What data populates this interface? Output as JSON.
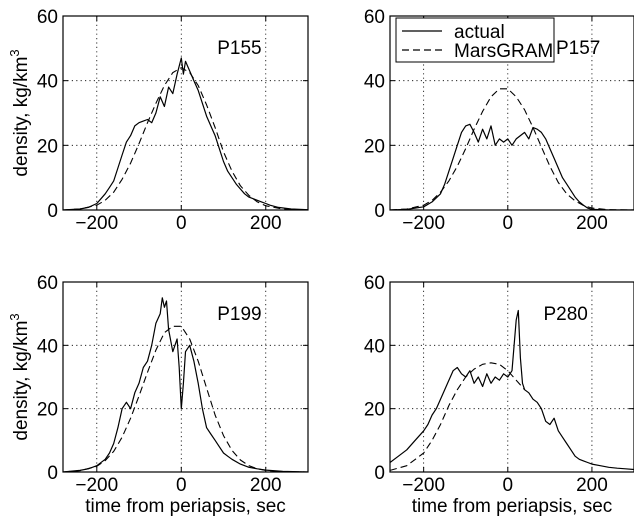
{
  "figure": {
    "ylabel": "density, kg/km",
    "ylabel_sup": "3",
    "xlabel": "time from periapsis, sec"
  },
  "chart_data": [
    {
      "type": "line",
      "panel": "top-left",
      "annotation": "P155",
      "ylabel": "density, kg/km3",
      "xlabel": "",
      "xlim": [
        -280,
        300
      ],
      "ylim": [
        0,
        60
      ],
      "xticks": [
        -200,
        0,
        200
      ],
      "yticks": [
        0,
        20,
        40,
        60
      ],
      "grid": true,
      "legend": null,
      "series": [
        {
          "role": "actual",
          "style": "solid",
          "x": [
            -280,
            -240,
            -220,
            -200,
            -190,
            -180,
            -170,
            -160,
            -150,
            -140,
            -130,
            -120,
            -110,
            -100,
            -90,
            -80,
            -70,
            -60,
            -50,
            -40,
            -30,
            -20,
            -10,
            0,
            5,
            10,
            20,
            30,
            40,
            50,
            60,
            70,
            80,
            90,
            100,
            110,
            120,
            130,
            140,
            150,
            160,
            170,
            180,
            190,
            200,
            210,
            230,
            260,
            300
          ],
          "y": [
            0,
            0.3,
            0.8,
            2,
            3.5,
            5,
            7,
            9,
            13,
            17,
            21,
            23,
            26,
            27,
            27.5,
            28,
            27,
            30,
            35,
            32,
            38,
            36,
            42,
            47,
            42,
            46,
            43,
            40,
            37,
            33,
            29,
            26,
            23,
            19,
            15,
            12,
            10,
            8,
            6.5,
            5,
            4,
            3.5,
            3,
            2.5,
            2,
            1.5,
            0.8,
            0.3,
            0.1
          ]
        },
        {
          "role": "MarsGRAM",
          "style": "dashed",
          "x": [
            -280,
            -240,
            -200,
            -180,
            -160,
            -140,
            -120,
            -100,
            -80,
            -60,
            -40,
            -20,
            0,
            20,
            40,
            60,
            80,
            100,
            120,
            140,
            160,
            180,
            200,
            240,
            300
          ],
          "y": [
            0,
            0.3,
            1.5,
            3,
            5.5,
            9.5,
            14.5,
            20.5,
            27,
            33,
            38.5,
            42.5,
            44,
            42.5,
            38.5,
            32.5,
            25.5,
            18,
            12,
            7.5,
            4.5,
            2.5,
            1.3,
            0.3,
            0
          ]
        }
      ]
    },
    {
      "type": "line",
      "panel": "top-right",
      "annotation": "P157",
      "ylabel": "",
      "xlabel": "",
      "xlim": [
        -280,
        300
      ],
      "ylim": [
        0,
        60
      ],
      "xticks": [
        -200,
        0,
        200
      ],
      "yticks": [
        0,
        20,
        40,
        60
      ],
      "grid": true,
      "legend": {
        "placement": "top-right",
        "entries": [
          {
            "label": "actual",
            "style": "solid"
          },
          {
            "label": "MarsGRAM",
            "style": "dashed"
          }
        ]
      },
      "series": [
        {
          "role": "actual",
          "style": "solid",
          "x": [
            -280,
            -240,
            -200,
            -180,
            -160,
            -150,
            -140,
            -130,
            -120,
            -110,
            -100,
            -90,
            -80,
            -70,
            -60,
            -50,
            -40,
            -30,
            -20,
            -10,
            0,
            10,
            20,
            30,
            40,
            50,
            60,
            70,
            80,
            90,
            100,
            110,
            120,
            130,
            140,
            150,
            160,
            170,
            180,
            190,
            200,
            240,
            300
          ],
          "y": [
            0,
            0.2,
            1,
            2.5,
            5,
            8,
            12,
            16,
            20,
            24,
            26,
            26.5,
            24,
            21,
            25,
            22,
            26,
            20,
            22,
            21,
            22,
            20,
            22,
            23,
            24,
            22,
            25.5,
            25,
            24,
            22,
            19,
            16,
            13,
            10,
            8,
            6,
            4,
            2.5,
            1.5,
            0.6,
            0.2,
            0,
            0
          ]
        },
        {
          "role": "MarsGRAM",
          "style": "dashed",
          "x": [
            -280,
            -240,
            -200,
            -180,
            -160,
            -140,
            -120,
            -100,
            -80,
            -60,
            -40,
            -20,
            0,
            20,
            40,
            60,
            80,
            100,
            120,
            140,
            160,
            180,
            200,
            240,
            300
          ],
          "y": [
            0,
            0.3,
            1.5,
            3,
            5.5,
            9,
            13.5,
            19,
            25,
            30.5,
            35,
            37.5,
            37.5,
            35,
            31,
            25.5,
            19.5,
            13.5,
            8.5,
            5,
            2.8,
            1.4,
            0.6,
            0.1,
            0
          ]
        }
      ]
    },
    {
      "type": "line",
      "panel": "bottom-left",
      "annotation": "P199",
      "ylabel": "density, kg/km3",
      "xlabel": "time from periapsis, sec",
      "xlim": [
        -280,
        300
      ],
      "ylim": [
        0,
        60
      ],
      "xticks": [
        -200,
        0,
        200
      ],
      "yticks": [
        0,
        20,
        40,
        60
      ],
      "grid": true,
      "legend": null,
      "series": [
        {
          "role": "actual",
          "style": "solid",
          "x": [
            -280,
            -240,
            -220,
            -200,
            -180,
            -170,
            -160,
            -150,
            -140,
            -130,
            -120,
            -110,
            -100,
            -90,
            -80,
            -70,
            -60,
            -50,
            -45,
            -40,
            -35,
            -30,
            -20,
            -10,
            -5,
            0,
            5,
            10,
            20,
            30,
            40,
            50,
            60,
            70,
            80,
            90,
            100,
            110,
            120,
            140,
            160,
            180,
            200,
            240,
            300
          ],
          "y": [
            0,
            0.5,
            1,
            2,
            4,
            6,
            9,
            14,
            20,
            22,
            20,
            25,
            28,
            33,
            35,
            40,
            47,
            50,
            55,
            52,
            54,
            45,
            38,
            42,
            33,
            20,
            28,
            38,
            40,
            35,
            28,
            20,
            14,
            12,
            10,
            8,
            6,
            5,
            4,
            2.5,
            1.5,
            1,
            0.6,
            0.2,
            0
          ]
        },
        {
          "role": "MarsGRAM",
          "style": "dashed",
          "x": [
            -280,
            -240,
            -200,
            -180,
            -160,
            -140,
            -120,
            -100,
            -80,
            -60,
            -40,
            -20,
            0,
            20,
            40,
            60,
            80,
            100,
            120,
            140,
            160,
            180,
            200,
            240,
            300
          ],
          "y": [
            0,
            0.4,
            1.8,
            3.6,
            6.5,
            11,
            17,
            24,
            31.5,
            38.5,
            44,
            46,
            46,
            42,
            35,
            26.5,
            18,
            11.5,
            6.8,
            3.8,
            2,
            1,
            0.5,
            0.1,
            0
          ]
        }
      ]
    },
    {
      "type": "line",
      "panel": "bottom-right",
      "annotation": "P280",
      "ylabel": "",
      "xlabel": "time from periapsis, sec",
      "xlim": [
        -280,
        300
      ],
      "ylim": [
        0,
        60
      ],
      "xticks": [
        -200,
        0,
        200
      ],
      "yticks": [
        0,
        20,
        40,
        60
      ],
      "grid": true,
      "legend": null,
      "series": [
        {
          "role": "actual",
          "style": "solid",
          "x": [
            -280,
            -260,
            -240,
            -220,
            -200,
            -190,
            -180,
            -170,
            -160,
            -150,
            -140,
            -130,
            -120,
            -110,
            -100,
            -90,
            -80,
            -70,
            -60,
            -50,
            -40,
            -30,
            -20,
            -10,
            0,
            10,
            15,
            20,
            25,
            30,
            35,
            40,
            50,
            60,
            70,
            80,
            90,
            100,
            110,
            120,
            130,
            140,
            150,
            160,
            170,
            180,
            190,
            200,
            220,
            240,
            260,
            280,
            300
          ],
          "y": [
            3,
            5,
            7,
            10,
            13,
            15,
            18,
            20,
            23,
            26,
            29,
            32,
            33,
            31,
            30,
            32,
            28,
            30,
            27,
            31,
            28,
            30,
            29,
            31,
            30,
            32,
            40,
            48,
            51,
            36,
            28,
            26,
            25,
            23,
            22,
            20,
            16,
            15,
            17,
            13,
            11,
            9,
            7,
            5,
            4,
            3.5,
            3,
            2.5,
            2,
            1.5,
            1.2,
            1,
            0.8
          ]
        },
        {
          "role": "MarsGRAM",
          "style": "dashed",
          "x": [
            -280,
            -240,
            -200,
            -180,
            -160,
            -140,
            -120,
            -100,
            -80,
            -60,
            -40,
            -20,
            0,
            20,
            40
          ],
          "y": [
            0.5,
            2,
            6,
            10,
            15,
            21,
            26,
            30,
            32.5,
            34,
            34.5,
            34,
            32,
            29,
            26
          ]
        }
      ]
    }
  ]
}
